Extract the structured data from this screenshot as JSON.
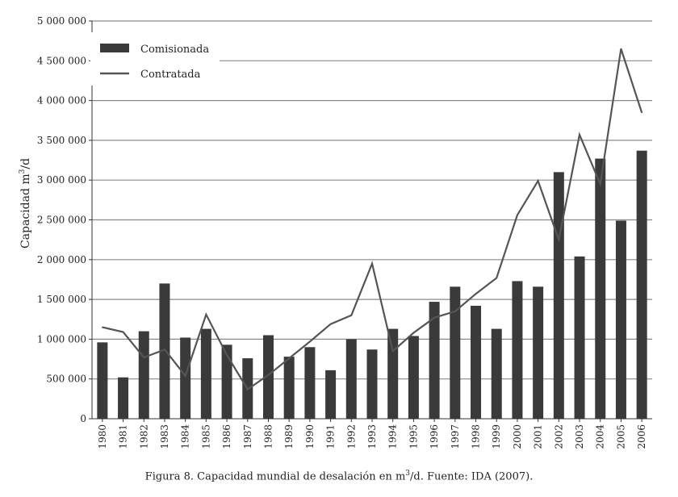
{
  "chart_data": {
    "type": "bar",
    "categories": [
      "1980",
      "1981",
      "1982",
      "1983",
      "1984",
      "1985",
      "1986",
      "1987",
      "1988",
      "1989",
      "1990",
      "1991",
      "1992",
      "1993",
      "1994",
      "1995",
      "1996",
      "1997",
      "1998",
      "1999",
      "2000",
      "2001",
      "2002",
      "2003",
      "2004",
      "2005",
      "2006"
    ],
    "series": [
      {
        "name": "Comisionada",
        "type": "bar",
        "values": [
          960000,
          520000,
          1100000,
          1700000,
          1020000,
          1130000,
          930000,
          760000,
          1050000,
          780000,
          900000,
          610000,
          1000000,
          870000,
          1130000,
          1040000,
          1470000,
          1660000,
          1420000,
          1130000,
          1730000,
          1660000,
          3100000,
          2040000,
          3270000,
          2490000,
          3370000
        ]
      },
      {
        "name": "Contratada",
        "type": "line",
        "values": [
          1150000,
          1090000,
          770000,
          870000,
          540000,
          1310000,
          800000,
          370000,
          550000,
          760000,
          970000,
          1190000,
          1300000,
          1950000,
          850000,
          1080000,
          1270000,
          1350000,
          1570000,
          1770000,
          2560000,
          2990000,
          2250000,
          3570000,
          2950000,
          4650000,
          3850000
        ]
      }
    ],
    "yticks": [
      "0",
      "500 000",
      "1 000 000",
      "1 500 000",
      "2 000 000",
      "2 500 000",
      "3 000 000",
      "3 500 000",
      "4 000 000",
      "4 500 000",
      "5 000 000"
    ],
    "ylim": [
      0,
      5000000
    ],
    "ylabel_main": "Capacidad m",
    "ylabel_sup": "3",
    "ylabel_tail": "/d",
    "grid": "horizontal",
    "legend": "top-left",
    "colors": {
      "bar": "#3a3a3a",
      "line": "#555555",
      "grid": "#8a8a8a"
    }
  },
  "caption": {
    "prefix": "Figura 8. Capacidad mundial de desalación en m",
    "sup": "3",
    "suffix": "/d. Fuente: IDA (2007)."
  }
}
